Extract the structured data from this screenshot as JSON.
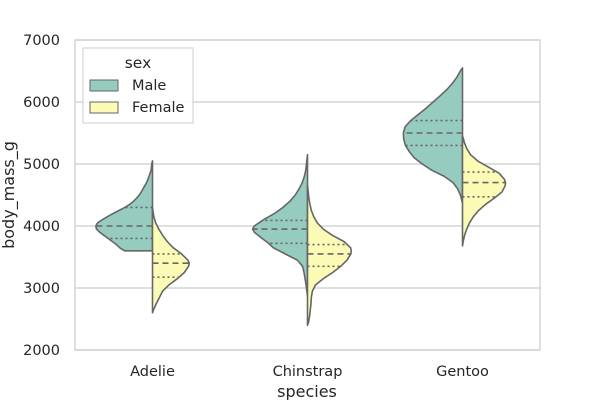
{
  "chart_data": {
    "type": "violin",
    "split": true,
    "xlabel": "species",
    "ylabel": "body_mass_g",
    "ylim": [
      2000,
      7000
    ],
    "yticks": [
      2000,
      3000,
      4000,
      5000,
      6000,
      7000
    ],
    "grid": "horizontal",
    "categories": [
      "Adelie",
      "Chinstrap",
      "Gentoo"
    ],
    "legend": {
      "title": "sex",
      "placement": "top-left"
    },
    "series": [
      {
        "name": "Male",
        "color": "#96ccc0",
        "violins": [
          {
            "category": "Adelie",
            "quartiles": [
              3800,
              4000,
              4300
            ],
            "profile": [
              [
                3600,
                0.8
              ],
              [
                3650,
                0.94
              ],
              [
                3700,
                1.03
              ],
              [
                3750,
                1.15
              ],
              [
                3800,
                1.27
              ],
              [
                3850,
                1.39
              ],
              [
                3900,
                1.51
              ],
              [
                3950,
                1.6
              ],
              [
                4000,
                1.62
              ],
              [
                4050,
                1.57
              ],
              [
                4100,
                1.44
              ],
              [
                4150,
                1.29
              ],
              [
                4200,
                1.13
              ],
              [
                4250,
                0.96
              ],
              [
                4300,
                0.79
              ],
              [
                4350,
                0.65
              ],
              [
                4400,
                0.54
              ],
              [
                4450,
                0.45
              ],
              [
                4500,
                0.38
              ],
              [
                4550,
                0.32
              ],
              [
                4600,
                0.27
              ],
              [
                4650,
                0.22
              ],
              [
                4700,
                0.17
              ],
              [
                4750,
                0.13
              ],
              [
                4800,
                0.1
              ],
              [
                4850,
                0.07
              ],
              [
                4900,
                0.04
              ],
              [
                5000,
                0.02
              ],
              [
                5050,
                0
              ]
            ]
          },
          {
            "category": "Chinstrap",
            "quartiles": [
              3720,
              3950,
              4090
            ],
            "profile": [
              [
                2870,
                0
              ],
              [
                2950,
                0.02
              ],
              [
                3050,
                0.04
              ],
              [
                3150,
                0.07
              ],
              [
                3250,
                0.1
              ],
              [
                3350,
                0.14
              ],
              [
                3450,
                0.29
              ],
              [
                3550,
                0.64
              ],
              [
                3650,
                0.98
              ],
              [
                3720,
                1.11
              ],
              [
                3800,
                1.3
              ],
              [
                3900,
                1.52
              ],
              [
                3950,
                1.57
              ],
              [
                4000,
                1.52
              ],
              [
                4100,
                1.26
              ],
              [
                4200,
                0.95
              ],
              [
                4300,
                0.7
              ],
              [
                4400,
                0.5
              ],
              [
                4500,
                0.35
              ],
              [
                4600,
                0.24
              ],
              [
                4700,
                0.15
              ],
              [
                4800,
                0.09
              ],
              [
                4900,
                0.05
              ],
              [
                5000,
                0.03
              ],
              [
                5100,
                0.01
              ],
              [
                5150,
                0
              ]
            ]
          },
          {
            "category": "Gentoo",
            "quartiles": [
              5300,
              5500,
              5700
            ],
            "profile": [
              [
                4370,
                0
              ],
              [
                4500,
                0.06
              ],
              [
                4600,
                0.14
              ],
              [
                4700,
                0.27
              ],
              [
                4800,
                0.52
              ],
              [
                4900,
                0.88
              ],
              [
                5000,
                1.15
              ],
              [
                5100,
                1.38
              ],
              [
                5200,
                1.52
              ],
              [
                5300,
                1.63
              ],
              [
                5400,
                1.68
              ],
              [
                5500,
                1.69
              ],
              [
                5600,
                1.64
              ],
              [
                5700,
                1.48
              ],
              [
                5800,
                1.26
              ],
              [
                5900,
                1.04
              ],
              [
                6000,
                0.84
              ],
              [
                6100,
                0.64
              ],
              [
                6200,
                0.45
              ],
              [
                6300,
                0.29
              ],
              [
                6400,
                0.16
              ],
              [
                6500,
                0.06
              ],
              [
                6550,
                0
              ]
            ]
          }
        ]
      },
      {
        "name": "Female",
        "color": "#fcfbb5",
        "violins": [
          {
            "category": "Adelie",
            "quartiles": [
              3175,
              3400,
              3550
            ],
            "profile": [
              [
                2600,
                0
              ],
              [
                2650,
                0.03
              ],
              [
                2750,
                0.11
              ],
              [
                2850,
                0.2
              ],
              [
                2950,
                0.29
              ],
              [
                3050,
                0.47
              ],
              [
                3150,
                0.71
              ],
              [
                3250,
                0.91
              ],
              [
                3350,
                1.03
              ],
              [
                3400,
                1.05
              ],
              [
                3450,
                1.01
              ],
              [
                3550,
                0.83
              ],
              [
                3650,
                0.59
              ],
              [
                3750,
                0.42
              ],
              [
                3850,
                0.29
              ],
              [
                3950,
                0.18
              ],
              [
                4050,
                0.09
              ],
              [
                4150,
                0.04
              ],
              [
                4250,
                0.01
              ],
              [
                4300,
                0
              ]
            ]
          },
          {
            "category": "Chinstrap",
            "quartiles": [
              3350,
              3550,
              3700
            ],
            "profile": [
              [
                2400,
                0
              ],
              [
                2450,
                0.03
              ],
              [
                2550,
                0.06
              ],
              [
                2650,
                0.08
              ],
              [
                2750,
                0.1
              ],
              [
                2850,
                0.11
              ],
              [
                2950,
                0.14
              ],
              [
                3050,
                0.23
              ],
              [
                3150,
                0.45
              ],
              [
                3250,
                0.72
              ],
              [
                3350,
                0.95
              ],
              [
                3450,
                1.13
              ],
              [
                3550,
                1.24
              ],
              [
                3600,
                1.25
              ],
              [
                3650,
                1.23
              ],
              [
                3750,
                1.04
              ],
              [
                3850,
                0.71
              ],
              [
                3950,
                0.45
              ],
              [
                4050,
                0.28
              ],
              [
                4150,
                0.18
              ],
              [
                4250,
                0.11
              ],
              [
                4350,
                0.07
              ],
              [
                4450,
                0.04
              ],
              [
                4550,
                0.02
              ],
              [
                4650,
                0
              ]
            ]
          },
          {
            "category": "Gentoo",
            "quartiles": [
              4470,
              4700,
              4870
            ],
            "profile": [
              [
                3680,
                0
              ],
              [
                3750,
                0.02
              ],
              [
                3850,
                0.06
              ],
              [
                3950,
                0.12
              ],
              [
                4050,
                0.2
              ],
              [
                4150,
                0.31
              ],
              [
                4250,
                0.46
              ],
              [
                4350,
                0.66
              ],
              [
                4450,
                0.91
              ],
              [
                4550,
                1.13
              ],
              [
                4650,
                1.22
              ],
              [
                4700,
                1.23
              ],
              [
                4750,
                1.2
              ],
              [
                4850,
                1.05
              ],
              [
                4950,
                0.74
              ],
              [
                5050,
                0.43
              ],
              [
                5150,
                0.23
              ],
              [
                5250,
                0.12
              ],
              [
                5350,
                0.05
              ],
              [
                5400,
                0.03
              ],
              [
                5450,
                0
              ]
            ]
          }
        ]
      }
    ]
  }
}
